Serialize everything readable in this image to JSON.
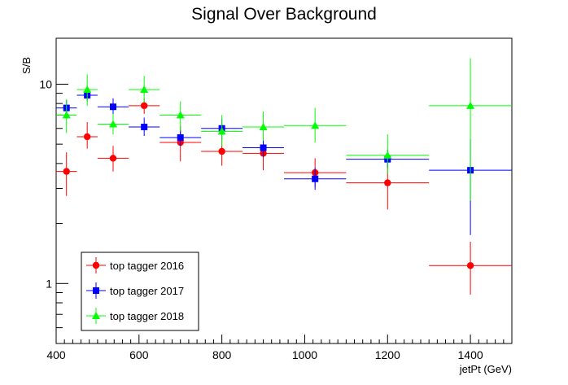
{
  "chart_data": {
    "type": "scatter",
    "title": "Signal Over Background",
    "xlabel": "jetPt (GeV)",
    "ylabel": "S/B",
    "xlim": [
      400,
      1500
    ],
    "ylim": [
      0.5,
      17
    ],
    "yscale": "log",
    "x_ticks": [
      "400",
      "600",
      "800",
      "1000",
      "1200",
      "1400"
    ],
    "y_ticks": [
      "1",
      "10"
    ],
    "legend_position": "bottom-left",
    "series": [
      {
        "name": "top tagger 2016",
        "color": "#ff0000",
        "marker": "circle",
        "points": [
          {
            "x": 425,
            "xerr": 25,
            "y": 3.65,
            "ylo": 2.75,
            "yhi": 4.55
          },
          {
            "x": 475,
            "xerr": 25,
            "y": 5.45,
            "ylo": 4.75,
            "yhi": 6.45
          },
          {
            "x": 537.5,
            "xerr": 37.5,
            "y": 4.25,
            "ylo": 3.65,
            "yhi": 4.9
          },
          {
            "x": 612.5,
            "xerr": 37.5,
            "y": 7.8,
            "ylo": 7.1,
            "yhi": 8.5
          },
          {
            "x": 700,
            "xerr": 50,
            "y": 5.1,
            "ylo": 4.1,
            "yhi": 6.2
          },
          {
            "x": 800,
            "xerr": 50,
            "y": 4.6,
            "ylo": 3.9,
            "yhi": 5.4
          },
          {
            "x": 900,
            "xerr": 50,
            "y": 4.5,
            "ylo": 3.7,
            "yhi": 5.4
          },
          {
            "x": 1025,
            "xerr": 75,
            "y": 3.6,
            "ylo": 3.05,
            "yhi": 4.25
          },
          {
            "x": 1200,
            "xerr": 100,
            "y": 3.2,
            "ylo": 2.35,
            "yhi": 4.1
          },
          {
            "x": 1400,
            "xerr": 100,
            "y": 1.23,
            "ylo": 0.88,
            "yhi": 1.62
          }
        ]
      },
      {
        "name": "top tagger 2017",
        "color": "#0000ff",
        "marker": "square",
        "points": [
          {
            "x": 425,
            "xerr": 25,
            "y": 7.6,
            "ylo": 7.0,
            "yhi": 8.3
          },
          {
            "x": 475,
            "xerr": 25,
            "y": 8.8,
            "ylo": 8.2,
            "yhi": 9.4
          },
          {
            "x": 537.5,
            "xerr": 37.5,
            "y": 7.7,
            "ylo": 7.0,
            "yhi": 8.5
          },
          {
            "x": 612.5,
            "xerr": 37.5,
            "y": 6.1,
            "ylo": 5.5,
            "yhi": 6.8
          },
          {
            "x": 700,
            "xerr": 50,
            "y": 5.4,
            "ylo": 4.9,
            "yhi": 5.9
          },
          {
            "x": 800,
            "xerr": 50,
            "y": 6.0,
            "ylo": 5.3,
            "yhi": 6.7
          },
          {
            "x": 900,
            "xerr": 50,
            "y": 4.8,
            "ylo": 4.3,
            "yhi": 5.3
          },
          {
            "x": 1025,
            "xerr": 75,
            "y": 3.35,
            "ylo": 2.95,
            "yhi": 3.8
          },
          {
            "x": 1200,
            "xerr": 100,
            "y": 4.2,
            "ylo": 3.8,
            "yhi": 4.7
          },
          {
            "x": 1400,
            "xerr": 100,
            "y": 3.7,
            "ylo": 1.75,
            "yhi": 5.3
          }
        ]
      },
      {
        "name": "top tagger 2018",
        "color": "#00ff00",
        "marker": "triangle",
        "points": [
          {
            "x": 425,
            "xerr": 25,
            "y": 7.0,
            "ylo": 5.7,
            "yhi": 8.4
          },
          {
            "x": 475,
            "xerr": 25,
            "y": 9.4,
            "ylo": 7.8,
            "yhi": 11.2
          },
          {
            "x": 537.5,
            "xerr": 37.5,
            "y": 6.3,
            "ylo": 5.6,
            "yhi": 7.1
          },
          {
            "x": 612.5,
            "xerr": 37.5,
            "y": 9.4,
            "ylo": 8.1,
            "yhi": 11.0
          },
          {
            "x": 700,
            "xerr": 50,
            "y": 7.0,
            "ylo": 5.8,
            "yhi": 8.2
          },
          {
            "x": 800,
            "xerr": 50,
            "y": 5.8,
            "ylo": 4.9,
            "yhi": 7.0
          },
          {
            "x": 900,
            "xerr": 50,
            "y": 6.1,
            "ylo": 5.2,
            "yhi": 7.3
          },
          {
            "x": 1025,
            "xerr": 75,
            "y": 6.2,
            "ylo": 5.1,
            "yhi": 7.6
          },
          {
            "x": 1200,
            "xerr": 100,
            "y": 4.4,
            "ylo": 3.55,
            "yhi": 5.6
          },
          {
            "x": 1400,
            "xerr": 100,
            "y": 7.8,
            "ylo": 2.6,
            "yhi": 13.5
          }
        ]
      }
    ]
  }
}
